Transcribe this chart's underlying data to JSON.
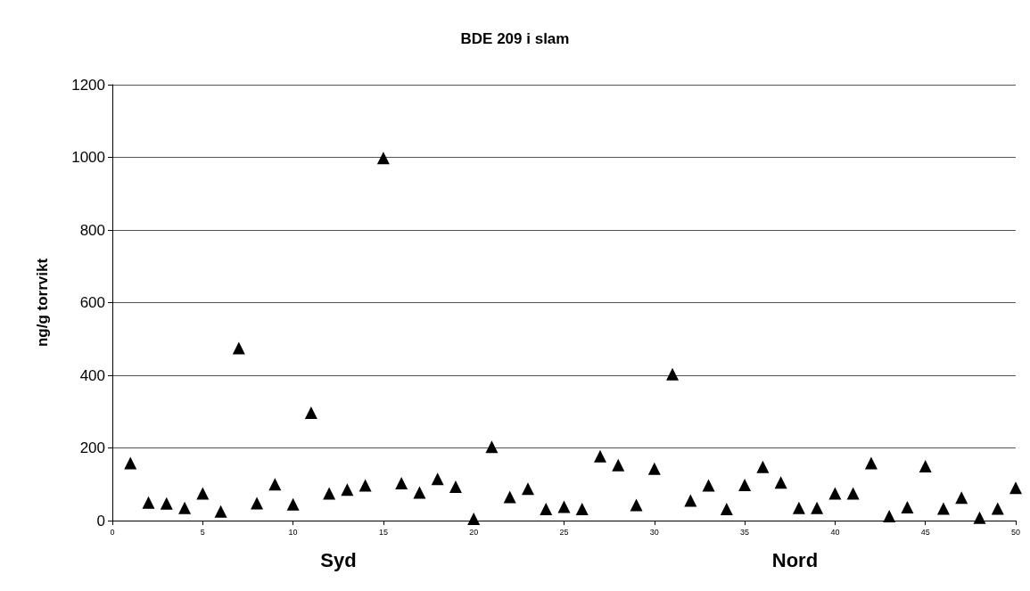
{
  "chart_data": {
    "type": "scatter",
    "title": "BDE 209 i slam",
    "ylabel": "ng/g torrvikt",
    "x": [
      1,
      2,
      3,
      4,
      5,
      6,
      7,
      8,
      9,
      10,
      11,
      12,
      13,
      14,
      15,
      16,
      17,
      18,
      19,
      20,
      21,
      22,
      23,
      24,
      25,
      26,
      27,
      28,
      29,
      30,
      31,
      32,
      33,
      34,
      35,
      36,
      37,
      38,
      39,
      40,
      41,
      42,
      43,
      44,
      45,
      46,
      47,
      48,
      49,
      50
    ],
    "series": [
      {
        "color": "#000000",
        "values": [
          158,
          50,
          47,
          35,
          75,
          25,
          475,
          48,
          100,
          45,
          297,
          75,
          85,
          97,
          998,
          103,
          77,
          115,
          93,
          5,
          203,
          65,
          88,
          32,
          38,
          32,
          177,
          153,
          43,
          143,
          403,
          55,
          97,
          32,
          98,
          148,
          105,
          35,
          35,
          75,
          75,
          158,
          12,
          37,
          150,
          33,
          63,
          8,
          33,
          90
        ]
      }
    ],
    "xlim": [
      0,
      50
    ],
    "xticks": [
      0,
      5,
      10,
      15,
      20,
      25,
      30,
      35,
      40,
      45,
      50
    ],
    "ylim": [
      0,
      1200
    ],
    "yticks": [
      0,
      200,
      400,
      600,
      800,
      1000,
      1200
    ],
    "grid": "y",
    "marker": "triangle",
    "annotations": [
      "Syd",
      "Nord"
    ]
  }
}
